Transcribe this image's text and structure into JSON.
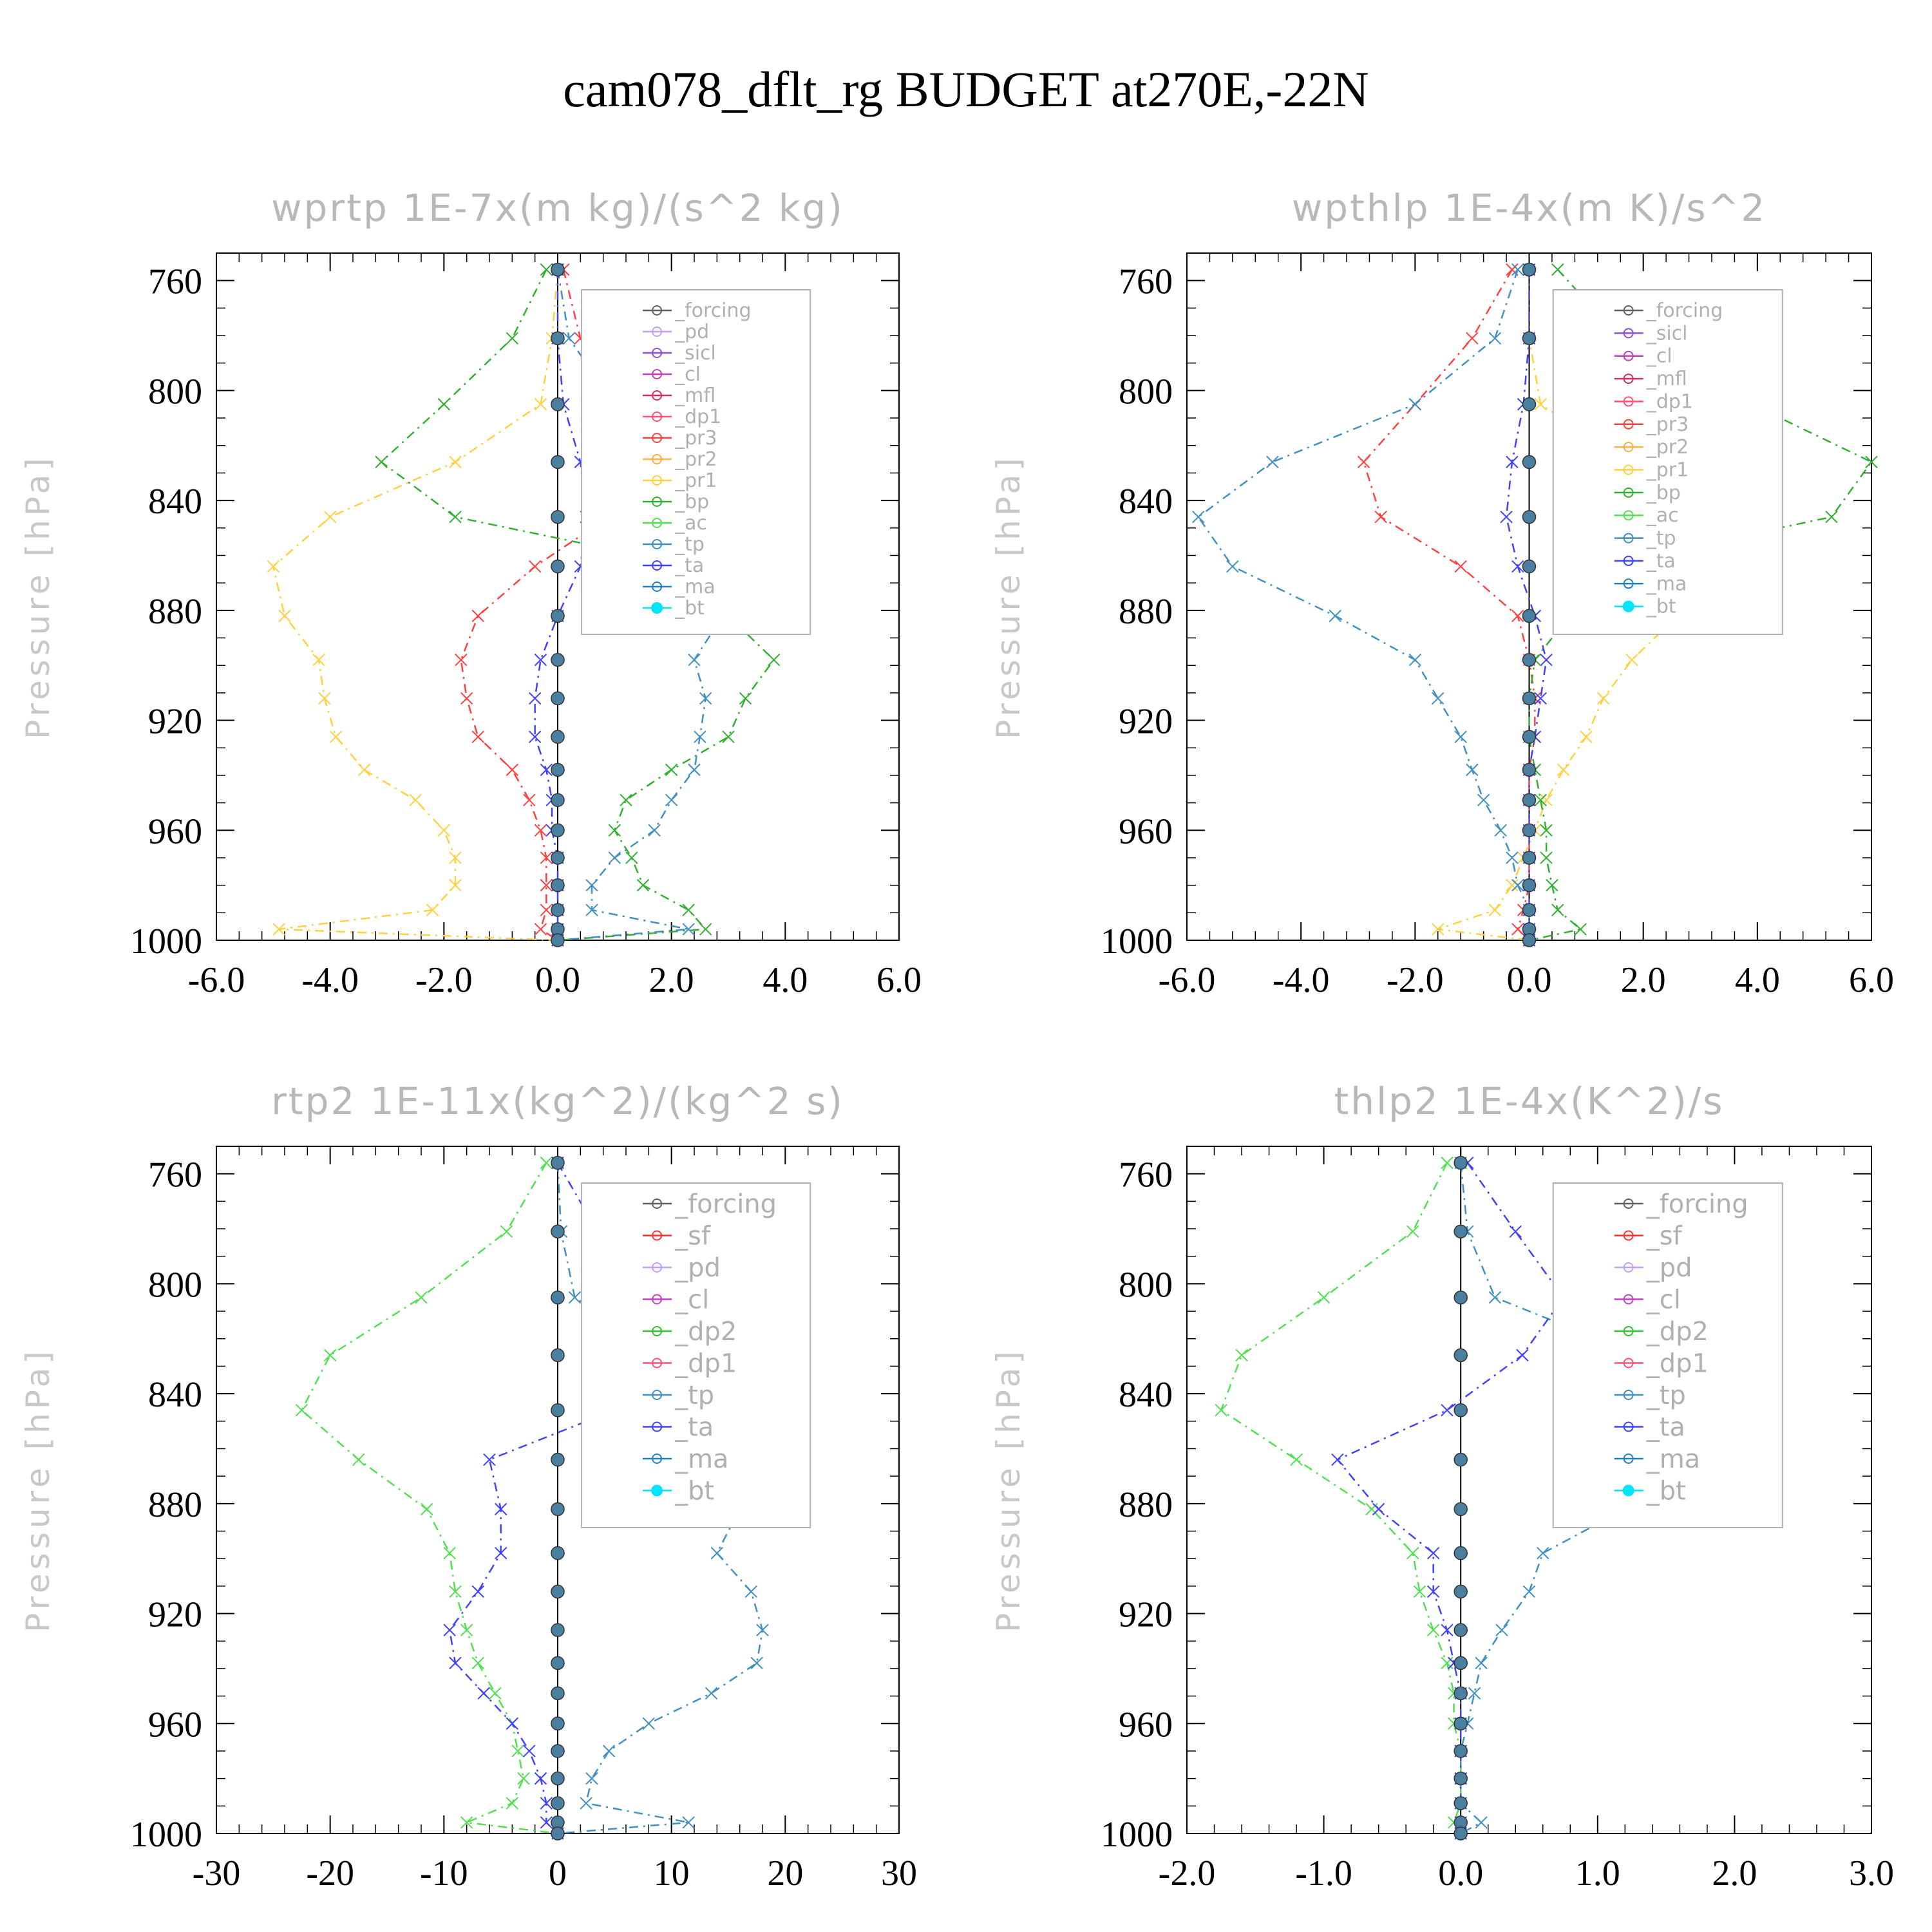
{
  "title": "cam078_dflt_rg  BUDGET at270E,-22N",
  "chart_data": [
    {
      "type": "line",
      "title": "wprtp  1E-7x(m kg)/(s^2 kg)",
      "ylabel": "Pressure [hPa]",
      "ylim": [
        1000,
        750
      ],
      "xlim": [
        -6.0,
        6.0
      ],
      "xticks": [
        "-6.0",
        "-4.0",
        "-2.0",
        "0.0",
        "2.0",
        "4.0",
        "6.0"
      ],
      "yticks": [
        "760",
        "800",
        "840",
        "880",
        "920",
        "960",
        "1000"
      ],
      "pressure": [
        756,
        781,
        805,
        826,
        846,
        864,
        882,
        898,
        912,
        926,
        938,
        949,
        960,
        970,
        980,
        989,
        996,
        1000
      ],
      "legend": [
        "_forcing",
        "_pd",
        "_sicl",
        "_cl",
        "_mfl",
        "_dp1",
        "_pr3",
        "_pr2",
        "_pr1",
        "_bp",
        "_ac",
        "_tp",
        "_ta",
        "_ma",
        "_bt"
      ],
      "series": [
        {
          "name": "_pr3",
          "color": "#ff4040",
          "values": [
            0.1,
            0.4,
            1.0,
            1.5,
            0.9,
            -0.4,
            -1.4,
            -1.7,
            -1.6,
            -1.4,
            -0.8,
            -0.5,
            -0.3,
            -0.2,
            -0.2,
            -0.2,
            -0.3,
            0.0
          ]
        },
        {
          "name": "_pr1",
          "color": "#ffd040",
          "values": [
            0.0,
            -0.1,
            -0.3,
            -1.8,
            -4.0,
            -5.0,
            -4.8,
            -4.2,
            -4.1,
            -3.9,
            -3.4,
            -2.5,
            -2.0,
            -1.8,
            -1.8,
            -2.2,
            -4.9,
            0.0
          ]
        },
        {
          "name": "_bp",
          "color": "#30b030",
          "values": [
            -0.2,
            -0.8,
            -2.0,
            -3.1,
            -1.8,
            2.4,
            3.0,
            3.8,
            3.3,
            3.0,
            2.0,
            1.2,
            1.0,
            1.3,
            1.5,
            2.3,
            2.6,
            0.0
          ]
        },
        {
          "name": "_tp",
          "color": "#4090c0",
          "values": [
            0.0,
            0.2,
            1.0,
            2.5,
            4.3,
            4.2,
            2.9,
            2.4,
            2.6,
            2.5,
            2.4,
            2.0,
            1.7,
            1.0,
            0.6,
            0.6,
            2.3,
            0.0
          ]
        },
        {
          "name": "_ta",
          "color": "#4040ff",
          "values": [
            0.0,
            0.0,
            0.1,
            0.4,
            0.5,
            0.4,
            0.0,
            -0.3,
            -0.4,
            -0.4,
            -0.2,
            -0.1,
            -0.1,
            0.0,
            0.0,
            0.0,
            0.0,
            0.0
          ]
        }
      ]
    },
    {
      "type": "line",
      "title": "wpthlp  1E-4x(m K)/s^2",
      "ylabel": "Pressure [hPa]",
      "ylim": [
        1000,
        750
      ],
      "xlim": [
        -6.0,
        6.0
      ],
      "xticks": [
        "-6.0",
        "-4.0",
        "-2.0",
        "0.0",
        "2.0",
        "4.0",
        "6.0"
      ],
      "yticks": [
        "760",
        "800",
        "840",
        "880",
        "920",
        "960",
        "1000"
      ],
      "pressure": [
        756,
        781,
        805,
        826,
        846,
        864,
        882,
        898,
        912,
        926,
        938,
        949,
        960,
        970,
        980,
        989,
        996,
        1000
      ],
      "legend": [
        "_forcing",
        "_sicl",
        "_cl",
        "_mfl",
        "_dp1",
        "_pr3",
        "_pr2",
        "_pr1",
        "_bp",
        "_ac",
        "_tp",
        "_ta",
        "_ma",
        "_bt"
      ],
      "series": [
        {
          "name": "_pr3",
          "color": "#ff4040",
          "values": [
            -0.3,
            -1.0,
            -2.0,
            -2.9,
            -2.6,
            -1.2,
            -0.2,
            0.0,
            0.1,
            0.1,
            0.0,
            0.0,
            0.0,
            0.0,
            0.0,
            -0.1,
            -0.2,
            0.0
          ]
        },
        {
          "name": "_pr1",
          "color": "#ffd040",
          "values": [
            0.0,
            0.0,
            0.2,
            1.7,
            3.5,
            3.7,
            2.6,
            1.8,
            1.3,
            1.0,
            0.6,
            0.3,
            0.1,
            -0.1,
            -0.3,
            -0.6,
            -1.6,
            0.0
          ]
        },
        {
          "name": "_bp",
          "color": "#30b030",
          "values": [
            0.5,
            1.6,
            3.9,
            6.0,
            5.3,
            1.2,
            0.7,
            0.1,
            0.0,
            0.0,
            0.1,
            0.2,
            0.3,
            0.3,
            0.4,
            0.5,
            0.9,
            0.0
          ]
        },
        {
          "name": "_tp",
          "color": "#4090c0",
          "values": [
            -0.2,
            -0.6,
            -2.0,
            -4.5,
            -5.8,
            -5.2,
            -3.4,
            -2.0,
            -1.6,
            -1.2,
            -1.0,
            -0.8,
            -0.5,
            -0.3,
            -0.2,
            0.0,
            0.0,
            0.0
          ]
        },
        {
          "name": "_ta",
          "color": "#4040ff",
          "values": [
            0.0,
            0.0,
            -0.1,
            -0.3,
            -0.4,
            -0.2,
            0.1,
            0.3,
            0.2,
            0.1,
            0.0,
            0.0,
            0.0,
            0.0,
            0.0,
            0.0,
            0.0,
            0.0
          ]
        }
      ]
    },
    {
      "type": "line",
      "title": "rtp2  1E-11x(kg^2)/(kg^2 s)",
      "ylabel": "Pressure [hPa]",
      "ylim": [
        1000,
        750
      ],
      "xlim": [
        -30,
        30
      ],
      "xticks": [
        "-30",
        "-20",
        "-10",
        "0",
        "10",
        "20",
        "30"
      ],
      "yticks": [
        "760",
        "800",
        "840",
        "880",
        "920",
        "960",
        "1000"
      ],
      "pressure": [
        756,
        781,
        805,
        826,
        846,
        864,
        882,
        898,
        912,
        926,
        938,
        949,
        960,
        970,
        980,
        989,
        996,
        1000
      ],
      "legend": [
        "_forcing",
        "_sf",
        "_pd",
        "_cl",
        "_dp2",
        "_dp1",
        "_tp",
        "_ta",
        "_ma",
        "_bt"
      ],
      "series": [
        {
          "name": "_dp1",
          "color": "#50e050",
          "values": [
            -1.0,
            -4.5,
            -12.0,
            -20.0,
            -22.5,
            -17.5,
            -11.5,
            -9.5,
            -9.0,
            -8.0,
            -7.0,
            -5.5,
            -4.0,
            -3.5,
            -3.0,
            -4.0,
            -8.0,
            0.0
          ]
        },
        {
          "name": "_tp",
          "color": "#4090c0",
          "values": [
            0.0,
            0.3,
            1.5,
            9.0,
            17.5,
            20.5,
            16.0,
            14.0,
            17.0,
            18.0,
            17.5,
            13.5,
            8.0,
            4.5,
            3.0,
            2.5,
            11.5,
            0.0
          ]
        },
        {
          "name": "_ta",
          "color": "#4040ff",
          "values": [
            0.0,
            3.5,
            10.0,
            11.5,
            5.0,
            -6.0,
            -5.0,
            -5.0,
            -7.0,
            -9.5,
            -9.0,
            -6.5,
            -4.0,
            -2.5,
            -1.5,
            -1.0,
            -1.0,
            0.0
          ]
        }
      ]
    },
    {
      "type": "line",
      "title": "thlp2  1E-4x(K^2)/s",
      "ylabel": "Pressure [hPa]",
      "ylim": [
        1000,
        750
      ],
      "xlim": [
        -2.0,
        3.0
      ],
      "xticks": [
        "-2.0",
        "-1.0",
        "0.0",
        "1.0",
        "2.0",
        "3.0"
      ],
      "yticks": [
        "760",
        "800",
        "840",
        "880",
        "920",
        "960",
        "1000"
      ],
      "pressure": [
        756,
        781,
        805,
        826,
        846,
        864,
        882,
        898,
        912,
        926,
        938,
        949,
        960,
        970,
        980,
        989,
        996,
        1000
      ],
      "legend": [
        "_forcing",
        "_sf",
        "_pd",
        "_cl",
        "_dp2",
        "_dp1",
        "_tp",
        "_ta",
        "_ma",
        "_bt"
      ],
      "series": [
        {
          "name": "_dp1",
          "color": "#50e050",
          "values": [
            -0.1,
            -0.35,
            -1.0,
            -1.6,
            -1.75,
            -1.2,
            -0.65,
            -0.35,
            -0.3,
            -0.2,
            -0.1,
            -0.05,
            -0.05,
            0.0,
            0.0,
            0.0,
            -0.05,
            0.0
          ]
        },
        {
          "name": "_tp",
          "color": "#4090c0",
          "values": [
            0.0,
            0.05,
            0.25,
            1.3,
            2.0,
            2.0,
            1.2,
            0.6,
            0.5,
            0.3,
            0.15,
            0.1,
            0.05,
            0.0,
            0.0,
            0.0,
            0.15,
            0.0
          ]
        },
        {
          "name": "_ta",
          "color": "#4040ff",
          "values": [
            0.05,
            0.4,
            0.75,
            0.45,
            -0.1,
            -0.9,
            -0.6,
            -0.2,
            -0.2,
            -0.1,
            -0.05,
            0.0,
            0.0,
            0.0,
            0.0,
            0.0,
            0.0,
            0.0
          ]
        }
      ]
    }
  ]
}
